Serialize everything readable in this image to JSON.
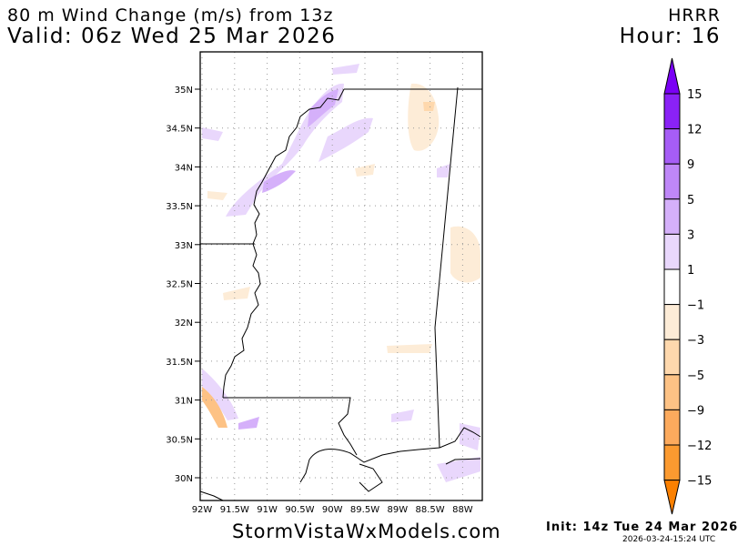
{
  "header": {
    "title": "80 m Wind Change (m/s) from 13z",
    "valid": "Valid: 06z Wed 25 Mar 2026",
    "model": "HRRR",
    "hour": "Hour: 16"
  },
  "footer": {
    "site": "StormVistaWxModels.com",
    "init": "Init: 14z Tue 24 Mar 2026",
    "timestamp": "2026-03-24-15:24 UTC"
  },
  "map": {
    "lat_labels": [
      "35N",
      "34.5N",
      "34N",
      "33.5N",
      "33N",
      "32.5N",
      "32N",
      "31.5N",
      "31N",
      "30.5N",
      "30N"
    ],
    "lon_labels": [
      "92W",
      "91.5W",
      "91W",
      "90.5W",
      "90W",
      "89.5W",
      "89W",
      "88.5W",
      "88W"
    ]
  },
  "colorbar": {
    "labels": [
      "15",
      "12",
      "9",
      "5",
      "3",
      "1",
      "−1",
      "−3",
      "−5",
      "−9",
      "−12",
      "−15"
    ],
    "colors": [
      "#8a22f6",
      "#a65df6",
      "#bf87f8",
      "#d5b0fa",
      "#e9d7fc",
      "#ffffff",
      "#fdecd7",
      "#fed8ad",
      "#fdc285",
      "#fcaa5d",
      "#fb9a30"
    ],
    "over_color": "#7a00f5",
    "under_color": "#fb8000"
  }
}
